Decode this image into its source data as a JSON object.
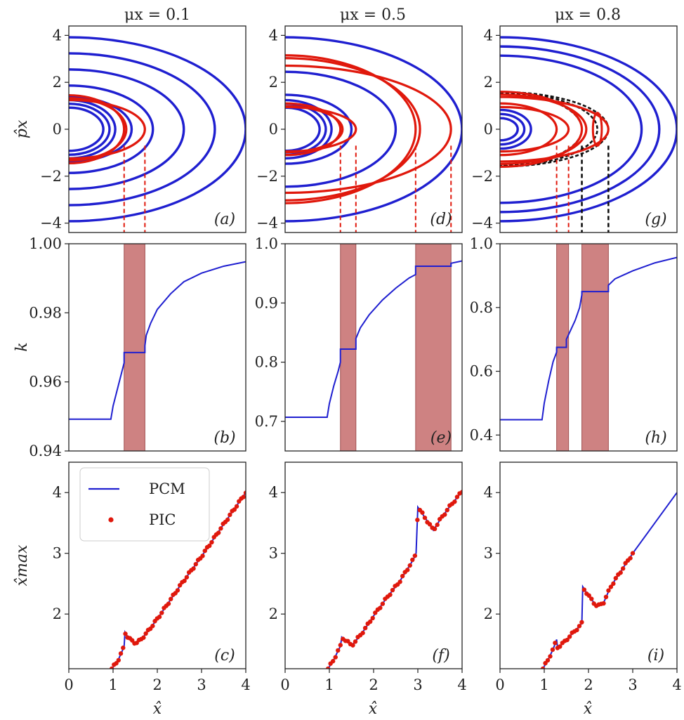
{
  "figure": {
    "col_titles": [
      "μx = 0.1",
      "μx = 0.5",
      "μx = 0.8"
    ],
    "row_labels": [
      "p̂x",
      "k",
      "x̂max"
    ],
    "xlabel": "x̂"
  },
  "legend": {
    "pcm": "PCM",
    "pic": "PIC"
  },
  "colors": {
    "pcm": "#1f1fd0",
    "pic": "#e0180c",
    "band": "#c97474",
    "black": "#111111"
  },
  "chart_data": [
    {
      "id": "a",
      "type": "line",
      "row": "phase",
      "col": 0,
      "label": "(a)",
      "xlim": [
        0,
        4
      ],
      "ylim": [
        -4.4,
        4.4
      ],
      "xticks": [],
      "yticks": [
        -4,
        -2,
        0,
        2,
        4
      ],
      "ytick_labels": [
        "−4",
        "−2",
        "0",
        "2",
        "4"
      ],
      "blue_orbits": [
        0.78,
        0.92,
        1.05,
        1.42,
        1.9,
        2.6,
        3.3,
        4.0
      ],
      "red_islands": [
        {
          "x0": 1.25,
          "x1": 1.72,
          "ymax": 1.45,
          "rings": [
            1.25,
            1.3
          ]
        }
      ],
      "dashed_red": [
        1.25,
        1.72
      ],
      "dashed_black": []
    },
    {
      "id": "d",
      "type": "line",
      "row": "phase",
      "col": 1,
      "label": "(d)",
      "xlim": [
        0,
        4
      ],
      "ylim": [
        -4.4,
        4.4
      ],
      "xticks": [],
      "yticks": [
        -4,
        -2,
        0,
        2,
        4
      ],
      "ytick_labels": [
        "−4",
        "−2",
        "0",
        "2",
        "4"
      ],
      "blue_orbits": [
        0.78,
        0.92,
        1.05,
        1.5,
        2.5,
        4.0
      ],
      "red_islands": [
        {
          "x0": 1.25,
          "x1": 1.6,
          "ymax": 1.1,
          "rings": [
            1.25,
            1.3
          ]
        },
        {
          "x0": 2.95,
          "x1": 3.75,
          "ymax": 3.15,
          "rings": [
            2.95,
            3.05
          ]
        }
      ],
      "dashed_red": [
        1.25,
        1.6,
        2.95,
        3.75
      ],
      "dashed_black": []
    },
    {
      "id": "g",
      "type": "line",
      "row": "phase",
      "col": 2,
      "label": "(g)",
      "xlim": [
        0,
        4
      ],
      "ylim": [
        -4.4,
        4.4
      ],
      "xticks": [],
      "yticks": [
        -4,
        -2,
        0,
        2,
        4
      ],
      "ytick_labels": [
        "−4",
        "−2",
        "0",
        "2",
        "4"
      ],
      "blue_orbits": [
        0.4,
        0.55,
        0.7,
        3.2,
        3.6,
        4.0
      ],
      "red_islands": [
        {
          "x0": 1.28,
          "x1": 1.55,
          "ymax": 1.1,
          "rings": [
            1.28
          ]
        },
        {
          "x0": 1.85,
          "x1": 2.45,
          "ymax": 1.6,
          "rings": [
            1.85,
            1.95
          ]
        }
      ],
      "black_orbits": [
        1.85,
        2.2,
        2.45
      ],
      "dashed_red": [
        1.28,
        1.55
      ],
      "dashed_black": [
        1.85,
        2.45
      ]
    },
    {
      "id": "b",
      "type": "line",
      "row": "k",
      "col": 0,
      "label": "(b)",
      "xlim": [
        0,
        4
      ],
      "ylim": [
        0.94,
        1.0
      ],
      "xticks": [],
      "yticks": [
        0.94,
        0.96,
        0.98,
        1.0
      ],
      "ytick_labels": [
        "0.94",
        "0.96",
        "0.98",
        "1.00"
      ],
      "bands": [
        [
          1.25,
          1.72
        ]
      ],
      "series": [
        {
          "name": "k",
          "x": [
            0,
            0.95,
            1.0,
            1.1,
            1.2,
            1.25,
            1.25,
            1.72,
            1.72,
            1.75,
            1.85,
            2.0,
            2.3,
            2.6,
            3.0,
            3.5,
            4.0
          ],
          "y": [
            0.9492,
            0.9492,
            0.953,
            0.958,
            0.963,
            0.9655,
            0.9685,
            0.9685,
            0.9705,
            0.9735,
            0.977,
            0.981,
            0.9855,
            0.989,
            0.9915,
            0.9935,
            0.9948
          ]
        }
      ]
    },
    {
      "id": "e",
      "type": "line",
      "row": "k",
      "col": 1,
      "label": "(e)",
      "xlim": [
        0,
        4
      ],
      "ylim": [
        0.65,
        1.0
      ],
      "xticks": [],
      "yticks": [
        0.7,
        0.8,
        0.9,
        1.0
      ],
      "ytick_labels": [
        "0.7",
        "0.8",
        "0.9",
        "1.0"
      ],
      "bands": [
        [
          1.25,
          1.6
        ],
        [
          2.95,
          3.75
        ]
      ],
      "series": [
        {
          "name": "k",
          "x": [
            0,
            0.95,
            1.0,
            1.1,
            1.2,
            1.25,
            1.25,
            1.6,
            1.6,
            1.7,
            1.9,
            2.2,
            2.5,
            2.8,
            2.95,
            2.95,
            3.75,
            3.75,
            4.0
          ],
          "y": [
            0.707,
            0.707,
            0.73,
            0.76,
            0.785,
            0.8,
            0.822,
            0.822,
            0.84,
            0.858,
            0.88,
            0.905,
            0.925,
            0.942,
            0.948,
            0.962,
            0.962,
            0.967,
            0.971
          ]
        }
      ]
    },
    {
      "id": "h",
      "type": "line",
      "row": "k",
      "col": 2,
      "label": "(h)",
      "xlim": [
        0,
        4
      ],
      "ylim": [
        0.35,
        1.0
      ],
      "xticks": [],
      "yticks": [
        0.4,
        0.6,
        0.8,
        1.0
      ],
      "ytick_labels": [
        "0.4",
        "0.6",
        "0.8",
        "1.0"
      ],
      "bands": [
        [
          1.28,
          1.55
        ],
        [
          1.85,
          2.45
        ]
      ],
      "series": [
        {
          "name": "k",
          "x": [
            0,
            0.95,
            1.0,
            1.1,
            1.2,
            1.28,
            1.28,
            1.5,
            1.5,
            1.6,
            1.7,
            1.8,
            1.85,
            1.85,
            2.45,
            2.45,
            2.6,
            3.0,
            3.5,
            4.0
          ],
          "y": [
            0.448,
            0.448,
            0.5,
            0.57,
            0.63,
            0.66,
            0.675,
            0.675,
            0.7,
            0.73,
            0.76,
            0.8,
            0.84,
            0.85,
            0.85,
            0.87,
            0.89,
            0.915,
            0.94,
            0.957
          ]
        }
      ]
    },
    {
      "id": "c",
      "type": "scatter",
      "row": "xmax",
      "col": 0,
      "label": "(c)",
      "xlim": [
        0,
        4
      ],
      "ylim": [
        1.1,
        4.5
      ],
      "xticks": [
        0,
        1,
        2,
        3,
        4
      ],
      "yticks": [
        2,
        3,
        4
      ],
      "xtick_labels": [
        "0",
        "1",
        "2",
        "3",
        "4"
      ],
      "ytick_labels": [
        "2",
        "3",
        "4"
      ],
      "legend_position": "top-left",
      "series": [
        {
          "name": "PCM",
          "x": [
            0.97,
            1.1,
            1.2,
            1.25,
            1.27,
            1.35,
            1.45,
            1.52,
            1.6,
            1.75,
            2.0,
            2.5,
            3.0,
            3.5,
            4.0
          ],
          "y": [
            1.1,
            1.22,
            1.38,
            1.47,
            1.7,
            1.6,
            1.55,
            1.52,
            1.56,
            1.68,
            1.92,
            2.45,
            2.95,
            3.48,
            4.0
          ]
        },
        {
          "name": "PIC",
          "x_range": [
            0.97,
            4.0
          ],
          "n": 60
        }
      ]
    },
    {
      "id": "f",
      "type": "scatter",
      "row": "xmax",
      "col": 1,
      "label": "(f)",
      "xlim": [
        0,
        4
      ],
      "ylim": [
        1.1,
        4.5
      ],
      "xticks": [
        0,
        1,
        2,
        3,
        4
      ],
      "yticks": [
        2,
        3,
        4
      ],
      "xtick_labels": [
        "0",
        "1",
        "2",
        "3",
        "4"
      ],
      "ytick_labels": [
        "2",
        "3",
        "4"
      ],
      "series": [
        {
          "name": "PCM",
          "x": [
            0.97,
            1.1,
            1.2,
            1.25,
            1.28,
            1.4,
            1.5,
            1.6,
            1.8,
            2.0,
            2.3,
            2.6,
            2.9,
            2.96,
            3.0,
            3.15,
            3.35,
            3.5,
            3.7,
            4.0
          ],
          "y": [
            1.1,
            1.25,
            1.4,
            1.47,
            1.62,
            1.55,
            1.48,
            1.56,
            1.75,
            1.97,
            2.27,
            2.55,
            2.9,
            3.0,
            3.76,
            3.6,
            3.38,
            3.55,
            3.75,
            4.02
          ]
        },
        {
          "name": "PIC",
          "x_range": [
            0.97,
            4.0
          ],
          "n": 55
        }
      ]
    },
    {
      "id": "i",
      "type": "scatter",
      "row": "xmax",
      "col": 2,
      "label": "(i)",
      "xlim": [
        0,
        4
      ],
      "ylim": [
        1.1,
        4.5
      ],
      "xticks": [
        0,
        1,
        2,
        3,
        4
      ],
      "yticks": [
        2,
        3,
        4
      ],
      "xtick_labels": [
        "0",
        "1",
        "2",
        "3",
        "4"
      ],
      "ytick_labels": [
        "2",
        "3",
        "4"
      ],
      "series": [
        {
          "name": "PCM",
          "x": [
            0.97,
            1.1,
            1.2,
            1.28,
            1.3,
            1.4,
            1.5,
            1.6,
            1.7,
            1.8,
            1.85,
            1.87,
            2.0,
            2.2,
            2.35,
            2.5,
            2.8,
            3.0,
            3.5,
            4.0
          ],
          "y": [
            1.1,
            1.27,
            1.42,
            1.58,
            1.45,
            1.5,
            1.58,
            1.65,
            1.73,
            1.8,
            1.85,
            2.45,
            2.3,
            2.12,
            2.2,
            2.45,
            2.78,
            3.0,
            3.5,
            4.0
          ]
        },
        {
          "name": "PIC",
          "x_range": [
            0.97,
            3.0
          ],
          "n": 38
        }
      ]
    }
  ]
}
